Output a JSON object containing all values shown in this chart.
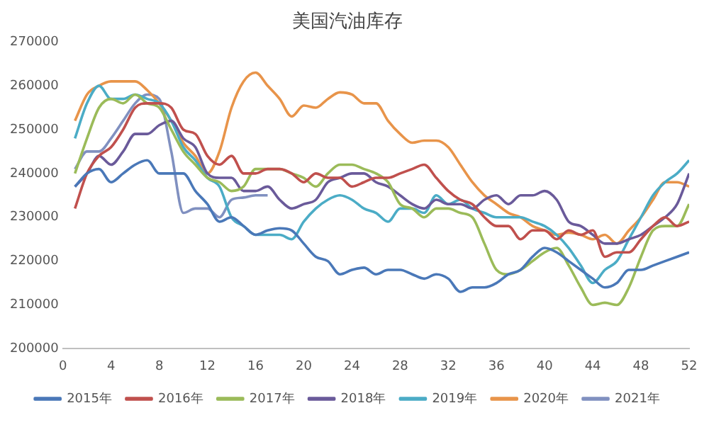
{
  "chart_data": {
    "type": "line",
    "title": "美国汽油库存",
    "x": [
      1,
      2,
      3,
      4,
      5,
      6,
      7,
      8,
      9,
      10,
      11,
      12,
      13,
      14,
      15,
      16,
      17,
      18,
      19,
      20,
      21,
      22,
      23,
      24,
      25,
      26,
      27,
      28,
      29,
      30,
      31,
      32,
      33,
      34,
      35,
      36,
      37,
      38,
      39,
      40,
      41,
      42,
      43,
      44,
      45,
      46,
      47,
      48,
      49,
      50,
      51,
      52
    ],
    "xlim": [
      0,
      52
    ],
    "xticks": [
      0,
      4,
      8,
      12,
      16,
      20,
      24,
      28,
      32,
      36,
      40,
      44,
      48,
      52
    ],
    "ylim": [
      200000,
      270000
    ],
    "yticks": [
      200000,
      210000,
      220000,
      230000,
      240000,
      250000,
      260000,
      270000
    ],
    "grid": false,
    "legend": "bottom",
    "marker": "none",
    "line_style": "solid",
    "series": [
      {
        "name": "2015年",
        "color": "#4a78b8",
        "values": [
          237000,
          240000,
          241000,
          238000,
          240000,
          242000,
          243000,
          240000,
          240000,
          240000,
          236000,
          233000,
          229000,
          230000,
          228000,
          226000,
          227000,
          227500,
          227000,
          224000,
          221000,
          220000,
          217000,
          218000,
          218500,
          217000,
          218000,
          218000,
          217000,
          216000,
          217000,
          216000,
          213000,
          214000,
          214000,
          215000,
          217000,
          218000,
          221000,
          223000,
          222000,
          220000,
          218000,
          216000,
          214000,
          215000,
          218000,
          218000,
          219000,
          220000,
          221000,
          222000
        ]
      },
      {
        "name": "2016年",
        "color": "#c0504d",
        "values": [
          232000,
          240000,
          244000,
          246000,
          250000,
          255000,
          256000,
          256000,
          255000,
          250000,
          249000,
          244000,
          242000,
          244000,
          240000,
          240000,
          241000,
          241000,
          240000,
          238000,
          240000,
          239000,
          239000,
          237000,
          238000,
          239000,
          239000,
          240000,
          241000,
          242000,
          239000,
          236000,
          234000,
          233000,
          230000,
          228000,
          228000,
          225000,
          227000,
          227000,
          225000,
          227000,
          226000,
          227000,
          221000,
          222000,
          222000,
          225000,
          228000,
          230000,
          228000,
          229000
        ]
      },
      {
        "name": "2017年",
        "color": "#9bbb59",
        "values": [
          240000,
          248000,
          255000,
          257000,
          256000,
          258000,
          256000,
          255000,
          250000,
          245000,
          242000,
          239000,
          238000,
          236000,
          237000,
          241000,
          241000,
          241000,
          240000,
          239000,
          237000,
          240000,
          242000,
          242000,
          241000,
          240000,
          238000,
          233000,
          232000,
          230000,
          232000,
          232000,
          231000,
          230000,
          224000,
          218000,
          217000,
          218000,
          220000,
          222000,
          223000,
          219000,
          214000,
          210000,
          210500,
          210000,
          214000,
          221000,
          227000,
          228000,
          228000,
          233000
        ]
      },
      {
        "name": "2018年",
        "color": "#6a5a9a",
        "values": [
          237000,
          240000,
          244000,
          242000,
          245000,
          249000,
          249000,
          251000,
          252000,
          248000,
          246000,
          240000,
          239000,
          239000,
          236000,
          236000,
          237000,
          234000,
          232000,
          233000,
          234000,
          238000,
          239000,
          240000,
          240000,
          238000,
          237000,
          235000,
          233000,
          232000,
          234000,
          233000,
          233000,
          232000,
          234000,
          235000,
          233000,
          235000,
          235000,
          236000,
          234000,
          229000,
          228000,
          226000,
          224000,
          224000,
          225000,
          226000,
          228000,
          230000,
          233000,
          240000
        ]
      },
      {
        "name": "2019年",
        "color": "#4bacc6",
        "values": [
          248000,
          256000,
          260000,
          257000,
          257000,
          258000,
          257000,
          256000,
          252000,
          246000,
          243000,
          239000,
          237000,
          230000,
          228000,
          226000,
          226000,
          226000,
          225000,
          229000,
          232000,
          234000,
          235000,
          234000,
          232000,
          231000,
          229000,
          232000,
          232000,
          231000,
          235000,
          233000,
          234000,
          232000,
          231000,
          230000,
          230000,
          230000,
          229000,
          228000,
          226000,
          223000,
          219000,
          215000,
          218000,
          220000,
          225000,
          230000,
          235000,
          238000,
          240000,
          243000
        ]
      },
      {
        "name": "2020年",
        "color": "#e8944a",
        "values": [
          252000,
          258000,
          260000,
          261000,
          261000,
          261000,
          259000,
          256000,
          252000,
          247000,
          244000,
          240000,
          245000,
          255000,
          261000,
          263000,
          260000,
          257000,
          253000,
          255500,
          255000,
          257000,
          258500,
          258000,
          256000,
          256000,
          252000,
          249000,
          247000,
          247500,
          247500,
          246000,
          242000,
          238000,
          235000,
          233000,
          231000,
          230000,
          228000,
          227000,
          226000,
          226500,
          226000,
          225000,
          226000,
          224000,
          227000,
          230000,
          234000,
          238000,
          238000,
          237000
        ]
      },
      {
        "name": "2021年",
        "color": "#8090c0",
        "values": [
          241000,
          245000,
          245000,
          248000,
          252000,
          256000,
          258000,
          257000,
          245000,
          231000,
          232000,
          232000,
          230000,
          234000,
          234500,
          235000,
          235000,
          null,
          null,
          null,
          null,
          null,
          null,
          null,
          null,
          null,
          null,
          null,
          null,
          null,
          null,
          null,
          null,
          null,
          null,
          null,
          null,
          null,
          null,
          null,
          null,
          null,
          null,
          null,
          null,
          null,
          null,
          null,
          null,
          null,
          null,
          null
        ]
      }
    ]
  }
}
